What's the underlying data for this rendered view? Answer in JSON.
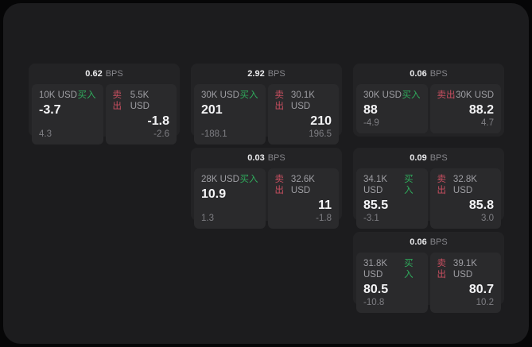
{
  "labels": {
    "bps_unit": "BPS",
    "buy": "买入",
    "sell": "卖出"
  },
  "colors": {
    "buy_green": "#2fab5c",
    "sell_red": "#c94f60",
    "panel_bg": "#1c1c1e",
    "card_bg": "#232325",
    "subpanel_bg": "#2a2a2c"
  },
  "cards": [
    {
      "bps": "0.62",
      "buy": {
        "amount": "10K USD",
        "value": "-3.7",
        "delta": "4.3"
      },
      "sell": {
        "amount": "5.5K USD",
        "value": "-1.8",
        "delta": "-2.6"
      }
    },
    {
      "bps": "2.92",
      "buy": {
        "amount": "30K USD",
        "value": "201",
        "delta": "-188.1"
      },
      "sell": {
        "amount": "30.1K USD",
        "value": "210",
        "delta": "196.5"
      }
    },
    {
      "bps": "0.06",
      "buy": {
        "amount": "30K USD",
        "value": "88",
        "delta": "-4.9"
      },
      "sell": {
        "amount": "30K USD",
        "value": "88.2",
        "delta": "4.7"
      }
    },
    {
      "bps": "0.03",
      "buy": {
        "amount": "28K USD",
        "value": "10.9",
        "delta": "1.3"
      },
      "sell": {
        "amount": "32.6K USD",
        "value": "11",
        "delta": "-1.8"
      }
    },
    {
      "bps": "0.09",
      "buy": {
        "amount": "34.1K USD",
        "value": "85.5",
        "delta": "-3.1"
      },
      "sell": {
        "amount": "32.8K USD",
        "value": "85.8",
        "delta": "3.0"
      }
    },
    {
      "bps": "0.06",
      "buy": {
        "amount": "31.8K USD",
        "value": "80.5",
        "delta": "-10.8"
      },
      "sell": {
        "amount": "39.1K USD",
        "value": "80.7",
        "delta": "10.2"
      }
    }
  ]
}
